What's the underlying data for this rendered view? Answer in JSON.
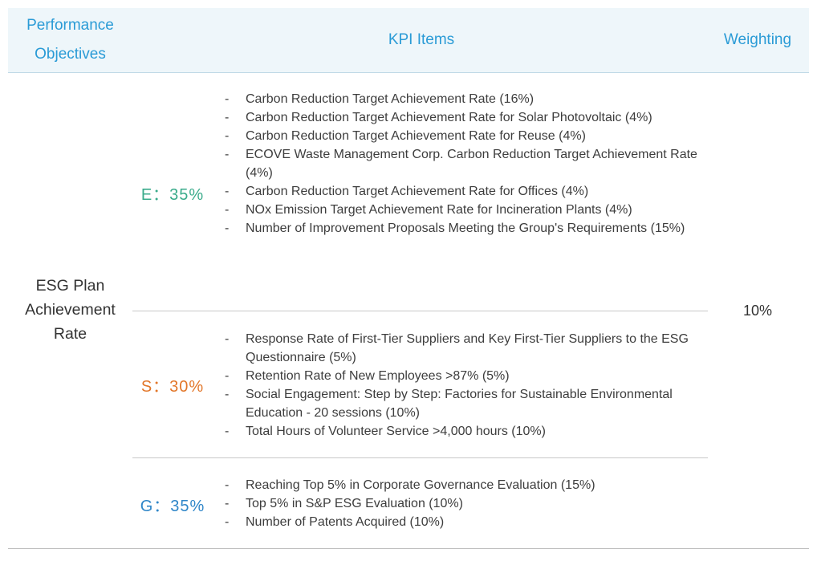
{
  "header": {
    "objectives_line1": "Performance",
    "objectives_line2": "Objectives",
    "kpi_items": "KPI Items",
    "weighting": "Weighting"
  },
  "objective": {
    "line1": "ESG Plan",
    "line2": "Achievement",
    "line3": "Rate"
  },
  "weighting_value": "10%",
  "dash": "-",
  "colors": {
    "header_text": "#2a9bd6",
    "header_bg": "#eef6fa",
    "environment": "#3aab8b",
    "social": "#e27629",
    "governance": "#2f86c8"
  },
  "categories": {
    "environment": {
      "label": "E：35%",
      "items": [
        "Carbon Reduction Target Achievement Rate (16%)",
        "Carbon Reduction Target Achievement Rate for Solar Photovoltaic (4%)",
        "Carbon Reduction Target Achievement Rate for Reuse (4%)",
        "ECOVE Waste Management Corp. Carbon Reduction Target Achievement Rate (4%)",
        "Carbon Reduction Target Achievement Rate for Offices (4%)",
        "NOx Emission Target Achievement Rate for Incineration Plants (4%)",
        "Number of Improvement Proposals Meeting the Group's Requirements (15%)"
      ]
    },
    "social": {
      "label": "S：30%",
      "items": [
        "Response Rate of First-Tier Suppliers and Key First-Tier Suppliers to the ESG Questionnaire (5%)",
        "Retention Rate of New Employees >87% (5%)",
        "Social Engagement: Step by Step: Factories for Sustainable Environmental Education - 20 sessions (10%)",
        "Total Hours of Volunteer Service >4,000 hours (10%)"
      ]
    },
    "governance": {
      "label": "G：35%",
      "items": [
        "Reaching Top 5% in Corporate Governance Evaluation (15%)",
        "Top 5% in S&P ESG Evaluation (10%)",
        "Number of Patents Acquired (10%)"
      ]
    }
  }
}
